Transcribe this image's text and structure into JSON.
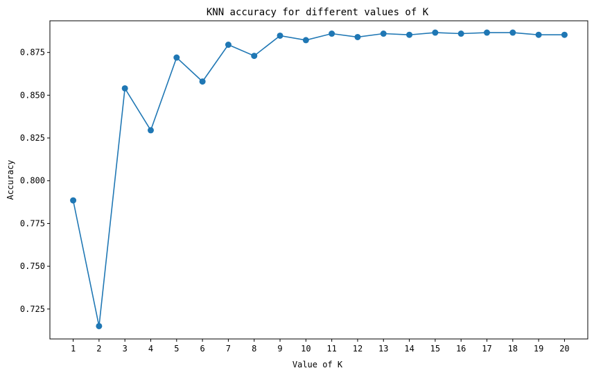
{
  "chart_data": {
    "type": "line",
    "title": "KNN accuracy for different values of K",
    "xlabel": "Value of K",
    "ylabel": "Accuracy",
    "x": [
      1,
      2,
      3,
      4,
      5,
      6,
      7,
      8,
      9,
      10,
      11,
      12,
      13,
      14,
      15,
      16,
      17,
      18,
      19,
      20
    ],
    "x_tick_labels": [
      "1",
      "2",
      "3",
      "4",
      "5",
      "6",
      "7",
      "8",
      "9",
      "10",
      "11",
      "12",
      "13",
      "14",
      "15",
      "16",
      "17",
      "18",
      "19",
      "20"
    ],
    "y_ticks": [
      0.725,
      0.75,
      0.775,
      0.8,
      0.825,
      0.85,
      0.875
    ],
    "y_tick_labels": [
      "0.725",
      "0.750",
      "0.775",
      "0.800",
      "0.825",
      "0.850",
      "0.875"
    ],
    "xlim": [
      0.1,
      20.9
    ],
    "ylim": [
      0.7075,
      0.8935
    ],
    "grid": false,
    "series": [
      {
        "values": [
          0.7885,
          0.715,
          0.854,
          0.8295,
          0.872,
          0.858,
          0.8795,
          0.873,
          0.8848,
          0.8822,
          0.886,
          0.884,
          0.886,
          0.8853,
          0.8866,
          0.886,
          0.8866,
          0.8866,
          0.8853,
          0.8853
        ],
        "color": "#1f77b4",
        "marker": "circle"
      }
    ]
  }
}
